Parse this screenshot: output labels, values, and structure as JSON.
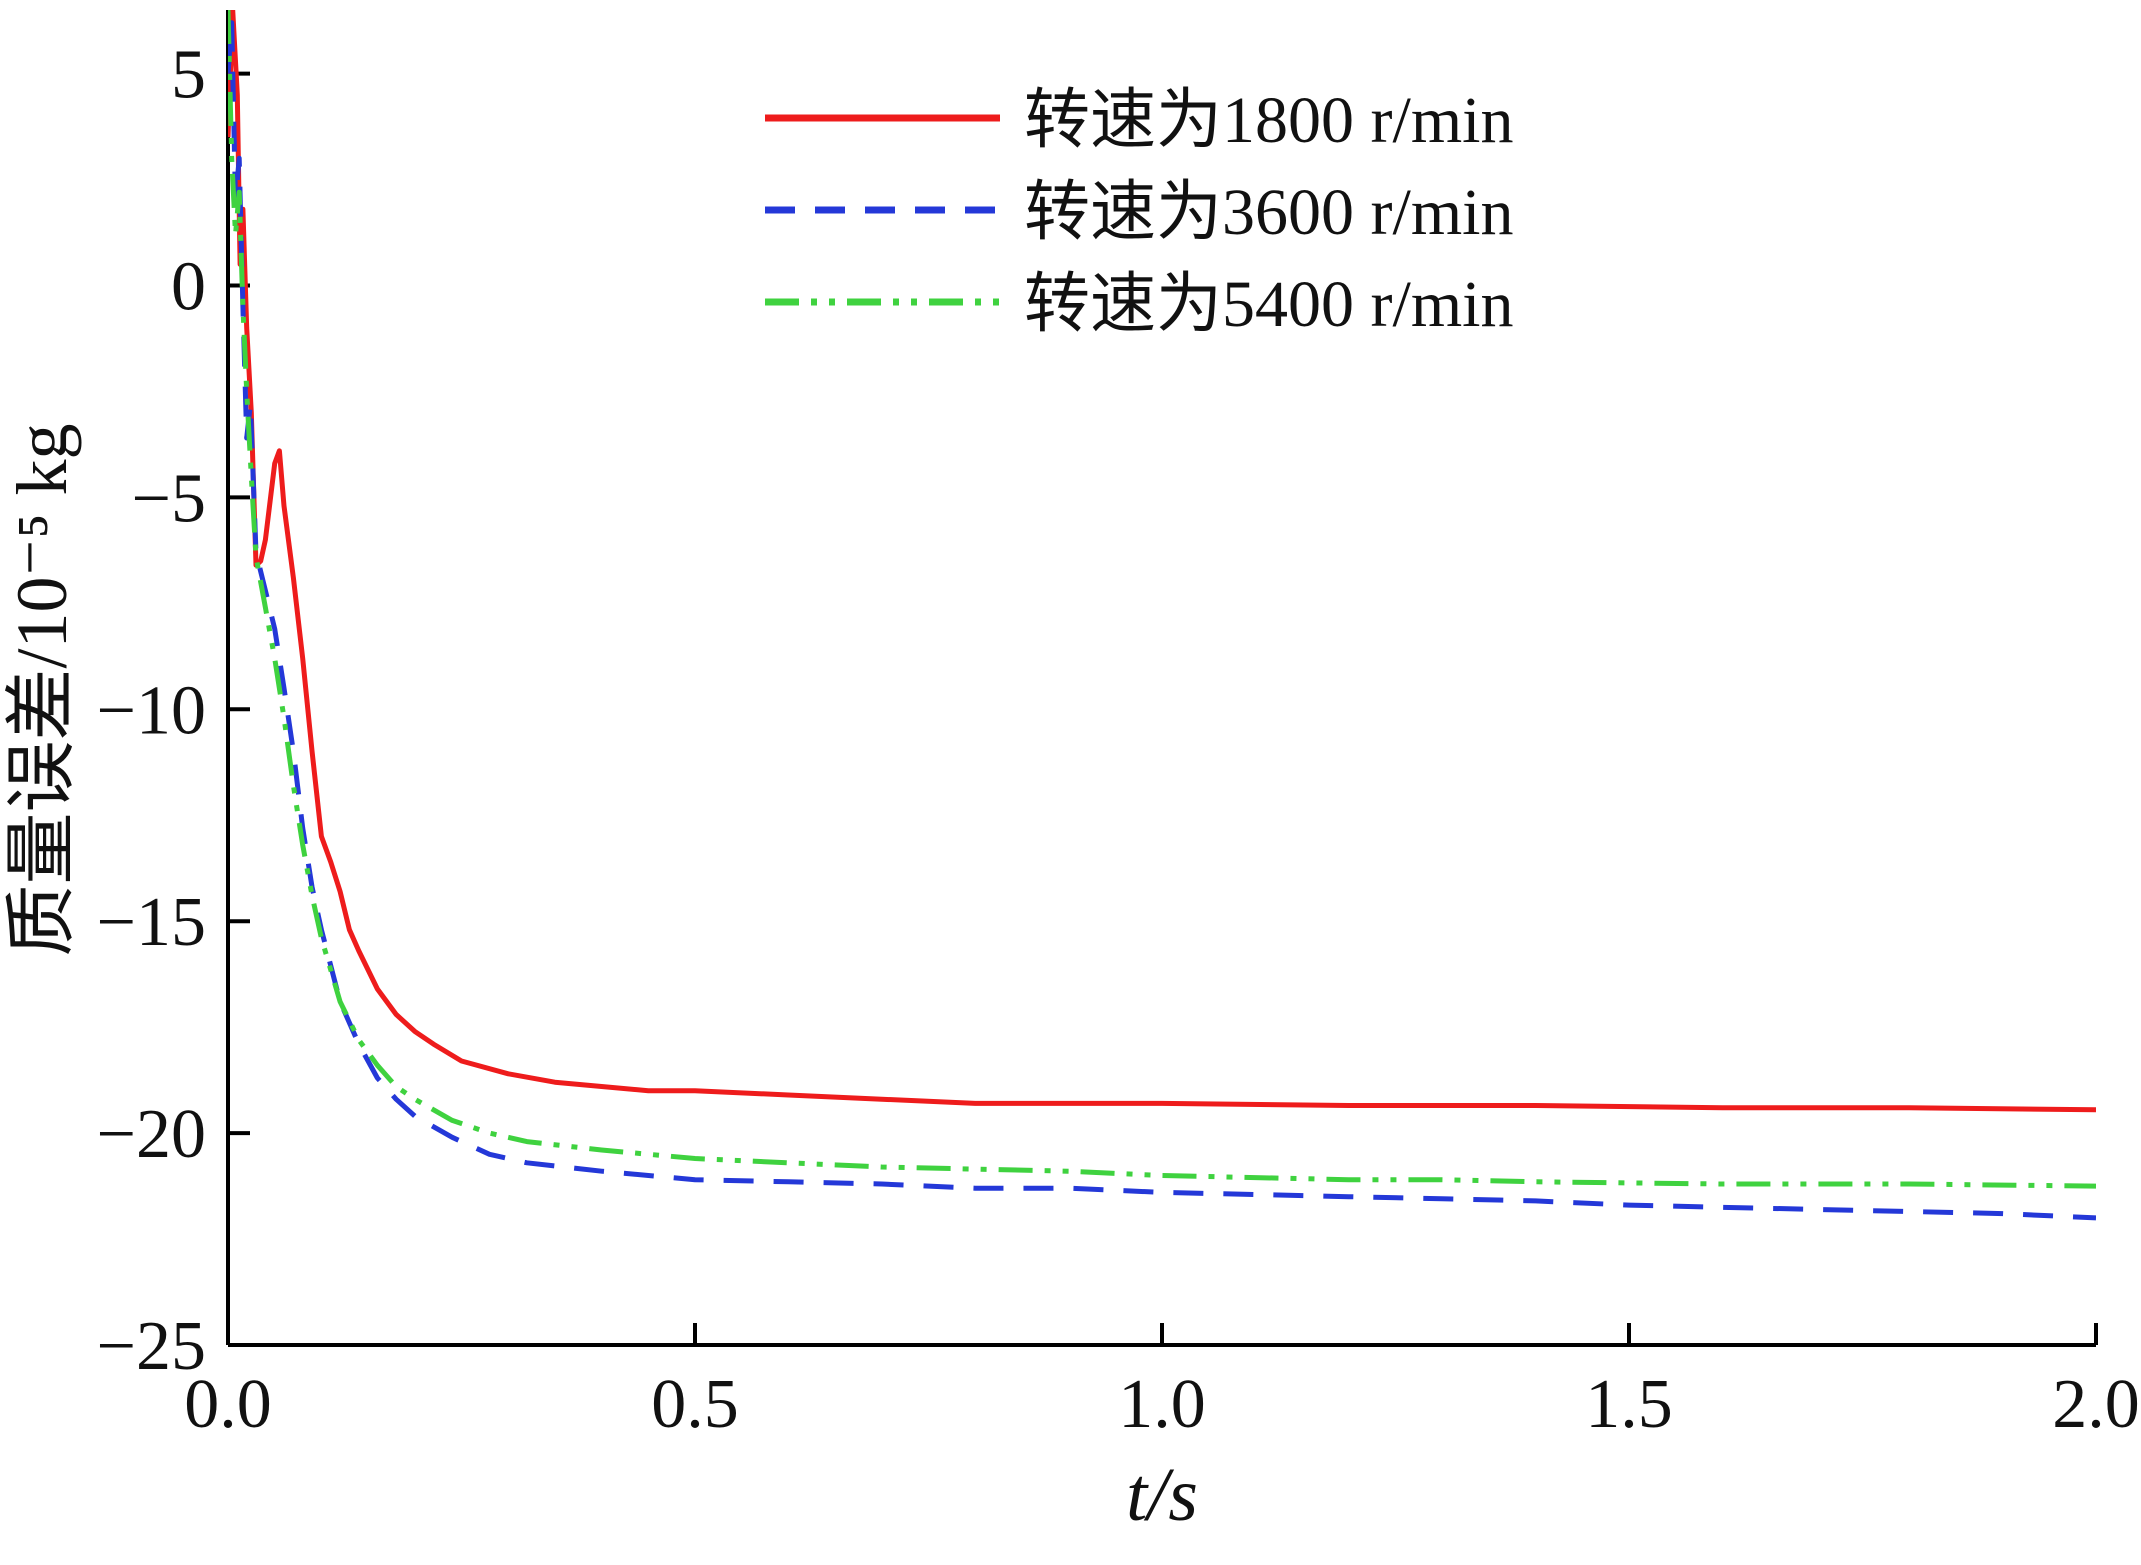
{
  "chart_data": {
    "type": "line",
    "title": "",
    "xlabel": "t/s",
    "ylabel": "质量误差/10⁻⁵ kg",
    "xlim": [
      0,
      2
    ],
    "ylim": [
      -25,
      6.5
    ],
    "xticks": [
      0,
      0.5,
      1,
      1.5,
      2
    ],
    "yticks": [
      5,
      0,
      -5,
      -10,
      -15,
      -20,
      -25
    ],
    "grid": false,
    "legend_position": "upper-right-inside",
    "axis_color": "#000000",
    "tick_label_color": "#111111",
    "series": [
      {
        "name": "转速为1800 r/min",
        "color": "#ee1c1c",
        "style": "solid",
        "points": [
          [
            0,
            3.5
          ],
          [
            0.005,
            6.5
          ],
          [
            0.01,
            4.5
          ],
          [
            0.013,
            0.5
          ],
          [
            0.016,
            1.8
          ],
          [
            0.02,
            -1
          ],
          [
            0.025,
            -3
          ],
          [
            0.03,
            -6.6
          ],
          [
            0.035,
            -6.5
          ],
          [
            0.04,
            -6
          ],
          [
            0.05,
            -4.2
          ],
          [
            0.055,
            -3.9
          ],
          [
            0.06,
            -5.2
          ],
          [
            0.07,
            -6.9
          ],
          [
            0.08,
            -8.8
          ],
          [
            0.09,
            -11
          ],
          [
            0.1,
            -13
          ],
          [
            0.11,
            -13.6
          ],
          [
            0.12,
            -14.3
          ],
          [
            0.13,
            -15.2
          ],
          [
            0.14,
            -15.7
          ],
          [
            0.16,
            -16.6
          ],
          [
            0.18,
            -17.2
          ],
          [
            0.2,
            -17.6
          ],
          [
            0.22,
            -17.9
          ],
          [
            0.25,
            -18.3
          ],
          [
            0.3,
            -18.6
          ],
          [
            0.35,
            -18.8
          ],
          [
            0.4,
            -18.9
          ],
          [
            0.45,
            -19
          ],
          [
            0.5,
            -19
          ],
          [
            0.6,
            -19.1
          ],
          [
            0.7,
            -19.2
          ],
          [
            0.8,
            -19.3
          ],
          [
            0.9,
            -19.3
          ],
          [
            1,
            -19.3
          ],
          [
            1.2,
            -19.35
          ],
          [
            1.4,
            -19.35
          ],
          [
            1.6,
            -19.4
          ],
          [
            1.8,
            -19.4
          ],
          [
            2,
            -19.45
          ]
        ]
      },
      {
        "name": "转速为3600 r/min",
        "color": "#2438d8",
        "style": "dashed",
        "points": [
          [
            0,
            5
          ],
          [
            0.004,
            6.2
          ],
          [
            0.008,
            2
          ],
          [
            0.012,
            3
          ],
          [
            0.016,
            -0.5
          ],
          [
            0.02,
            -3.6
          ],
          [
            0.024,
            -2.8
          ],
          [
            0.03,
            -6.3
          ],
          [
            0.04,
            -7.2
          ],
          [
            0.05,
            -8.1
          ],
          [
            0.06,
            -9.5
          ],
          [
            0.07,
            -11
          ],
          [
            0.08,
            -12.8
          ],
          [
            0.09,
            -14.2
          ],
          [
            0.1,
            -15.2
          ],
          [
            0.12,
            -16.9
          ],
          [
            0.14,
            -17.9
          ],
          [
            0.16,
            -18.7
          ],
          [
            0.18,
            -19.2
          ],
          [
            0.2,
            -19.6
          ],
          [
            0.24,
            -20.1
          ],
          [
            0.28,
            -20.5
          ],
          [
            0.32,
            -20.7
          ],
          [
            0.36,
            -20.8
          ],
          [
            0.4,
            -20.9
          ],
          [
            0.5,
            -21.1
          ],
          [
            0.6,
            -21.15
          ],
          [
            0.7,
            -21.2
          ],
          [
            0.8,
            -21.3
          ],
          [
            0.9,
            -21.3
          ],
          [
            1,
            -21.4
          ],
          [
            1.1,
            -21.45
          ],
          [
            1.2,
            -21.5
          ],
          [
            1.3,
            -21.55
          ],
          [
            1.4,
            -21.6
          ],
          [
            1.5,
            -21.7
          ],
          [
            1.6,
            -21.75
          ],
          [
            1.7,
            -21.8
          ],
          [
            1.8,
            -21.85
          ],
          [
            1.9,
            -21.9
          ],
          [
            2,
            -22
          ]
        ]
      },
      {
        "name": "转速为5400 r/min",
        "color": "#3fd23f",
        "style": "dashdot",
        "points": [
          [
            0,
            6.5
          ],
          [
            0.004,
            3
          ],
          [
            0.008,
            1.2
          ],
          [
            0.012,
            2.2
          ],
          [
            0.016,
            -0.5
          ],
          [
            0.02,
            -2.5
          ],
          [
            0.025,
            -4.5
          ],
          [
            0.03,
            -6.4
          ],
          [
            0.04,
            -7.6
          ],
          [
            0.05,
            -8.8
          ],
          [
            0.06,
            -10.2
          ],
          [
            0.07,
            -11.8
          ],
          [
            0.08,
            -13.2
          ],
          [
            0.09,
            -14.4
          ],
          [
            0.1,
            -15.4
          ],
          [
            0.12,
            -16.9
          ],
          [
            0.14,
            -17.8
          ],
          [
            0.16,
            -18.4
          ],
          [
            0.18,
            -18.9
          ],
          [
            0.2,
            -19.2
          ],
          [
            0.24,
            -19.7
          ],
          [
            0.28,
            -20
          ],
          [
            0.32,
            -20.2
          ],
          [
            0.36,
            -20.3
          ],
          [
            0.4,
            -20.4
          ],
          [
            0.5,
            -20.6
          ],
          [
            0.6,
            -20.7
          ],
          [
            0.7,
            -20.8
          ],
          [
            0.8,
            -20.85
          ],
          [
            0.9,
            -20.9
          ],
          [
            1,
            -21
          ],
          [
            1.1,
            -21.05
          ],
          [
            1.2,
            -21.1
          ],
          [
            1.3,
            -21.1
          ],
          [
            1.4,
            -21.15
          ],
          [
            1.6,
            -21.2
          ],
          [
            1.8,
            -21.2
          ],
          [
            2,
            -21.25
          ]
        ]
      }
    ]
  }
}
